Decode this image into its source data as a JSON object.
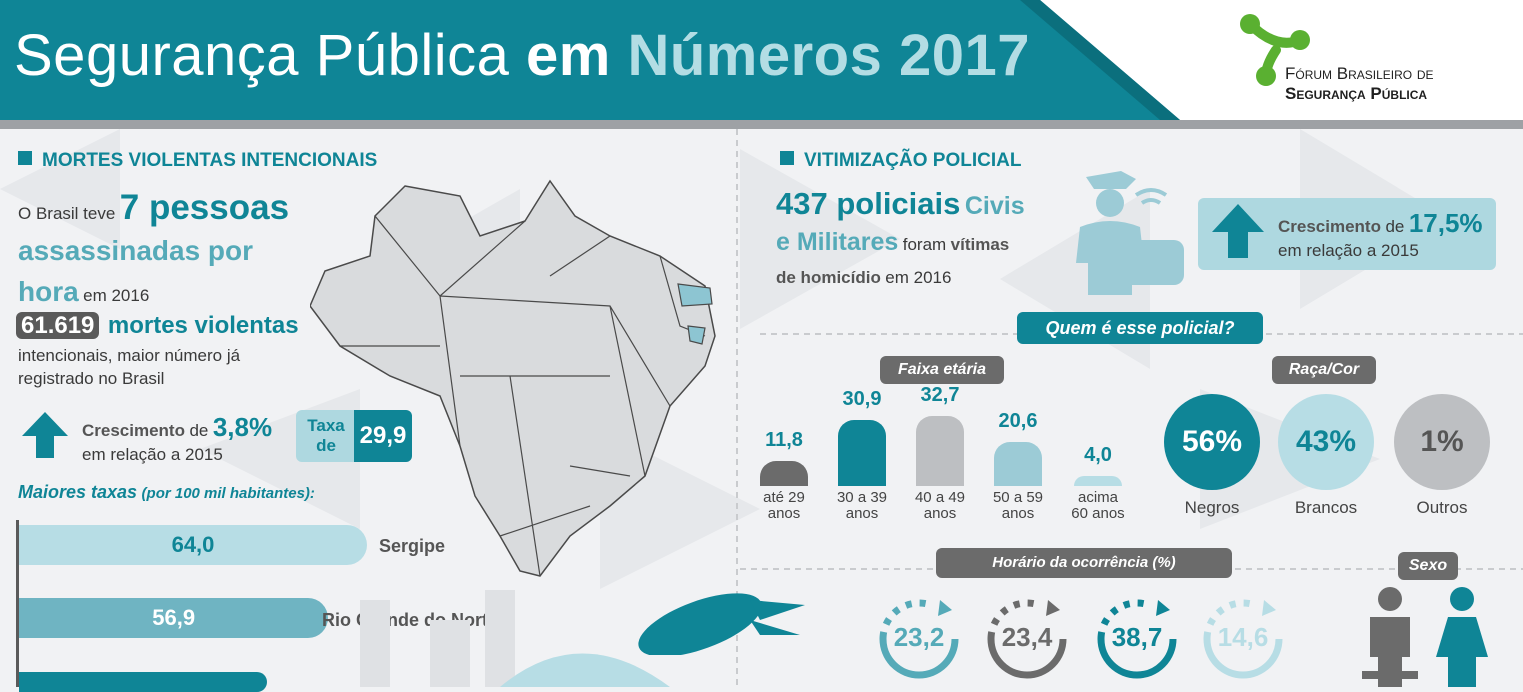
{
  "header": {
    "title_part1": "Segurança Pública",
    "title_part2": "em",
    "title_part3": "Números 2017",
    "logo_line1": "Fórum Brasileiro de",
    "logo_line2": "Segurança Pública"
  },
  "left": {
    "section_title": "MORTES VIOLENTAS INTENCIONAIS",
    "intro_prefix": "O Brasil teve",
    "intro_big1": "7 pessoas",
    "intro_big2": "assassinadas por",
    "intro_big3": "hora",
    "intro_suffix": "em 2016",
    "deaths_number": "61.619",
    "deaths_label": "mortes violentas",
    "deaths_desc1": "intencionais, maior número já",
    "deaths_desc2": "registrado no Brasil",
    "growth_word": "Crescimento",
    "growth_de": "de",
    "growth_value": "3,8%",
    "growth_ref": "em relação a 2015",
    "rate_label1": "Taxa",
    "rate_label2": "de",
    "rate_value": "29,9",
    "top_rates_title": "Maiores taxas",
    "top_rates_sub": "(por 100 mil habitantes):",
    "top_rates": [
      {
        "value": "64,0",
        "state": "Sergipe",
        "num": 64.0
      },
      {
        "value": "56,9",
        "state": "Rio Grande do Norte",
        "num": 56.9
      }
    ]
  },
  "right": {
    "section_title": "VITIMIZAÇÃO POLICIAL",
    "police_count": "437 policiais",
    "police_civ": "Civis",
    "police_mil": "e Militares",
    "police_foram": "foram",
    "police_vitimas": "vítimas",
    "police_hom": "de homicídio",
    "police_year": "em 2016",
    "growth_word": "Crescimento",
    "growth_de": "de",
    "growth_value": "17,5%",
    "growth_ref": "em relação a 2015",
    "who_title": "Quem é esse policial?",
    "age_title": "Faixa etária",
    "ages": [
      {
        "value": "11,8",
        "label1": "até 29",
        "label2": "anos",
        "num": 11.8,
        "color": "#6b6b6b"
      },
      {
        "value": "30,9",
        "label1": "30 a 39",
        "label2": "anos",
        "num": 30.9,
        "color": "#0f8596"
      },
      {
        "value": "32,7",
        "label1": "40 a 49",
        "label2": "anos",
        "num": 32.7,
        "color": "#bdbfc2"
      },
      {
        "value": "20,6",
        "label1": "50 a 59",
        "label2": "anos",
        "num": 20.6,
        "color": "#9ccbd6"
      },
      {
        "value": "4,0",
        "label1": "acima",
        "label2": "60 anos",
        "num": 4.0,
        "color": "#b7dde5"
      }
    ],
    "race_title": "Raça/Cor",
    "races": [
      {
        "value": "56%",
        "label": "Negros",
        "color": "#0f8596",
        "text": "#ffffff"
      },
      {
        "value": "43%",
        "label": "Brancos",
        "color": "#b7dde5",
        "text": "#0f8596"
      },
      {
        "value": "1%",
        "label": "Outros",
        "color": "#bdbfc2",
        "text": "#555555"
      }
    ],
    "hour_title": "Horário da ocorrência (%)",
    "hours": [
      {
        "value": "23,2",
        "color": "#55aab8"
      },
      {
        "value": "23,4",
        "color": "#6b6b6b"
      },
      {
        "value": "38,7",
        "color": "#0f8596"
      },
      {
        "value": "14,6",
        "color": "#b7dde5"
      }
    ],
    "sex_title": "Sexo"
  },
  "colors": {
    "teal": "#0f8596",
    "light_teal": "#b7dde5",
    "gray": "#6b6b6b",
    "header_band": "#0f8596"
  }
}
